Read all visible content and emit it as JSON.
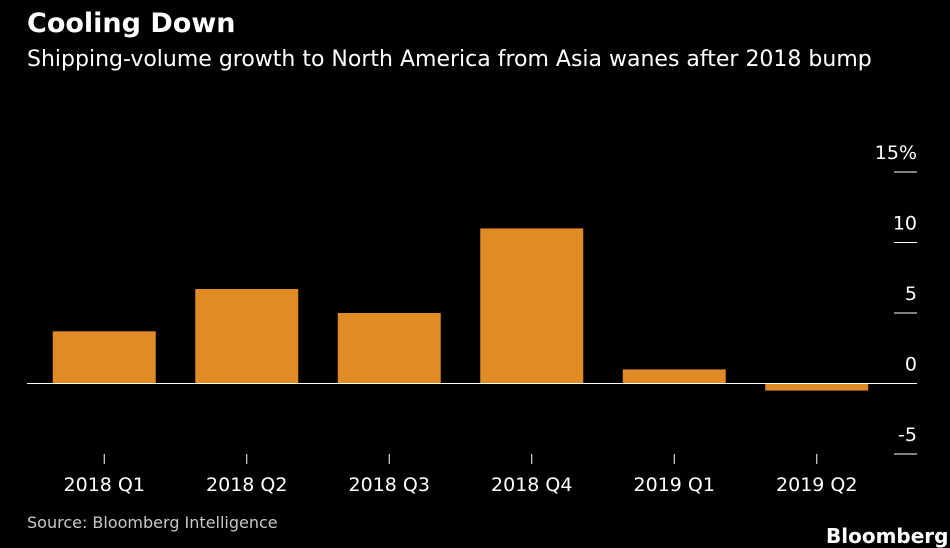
{
  "header": {
    "title": "Cooling Down",
    "subtitle": "Shipping-volume growth to North America from Asia wanes after 2018 bump"
  },
  "footer": {
    "source": "Source: Bloomberg Intelligence",
    "brand": "Bloomberg"
  },
  "colors": {
    "background": "#000000",
    "bar": "#e08b25",
    "axis": "#ffffff",
    "text": "#ffffff"
  },
  "chart_data": {
    "type": "bar",
    "title": "Cooling Down",
    "subtitle": "Shipping-volume growth to North America from Asia wanes after 2018 bump",
    "categories": [
      "2018 Q1",
      "2018 Q2",
      "2018 Q3",
      "2018 Q4",
      "2019 Q1",
      "2019 Q2"
    ],
    "values": [
      3.7,
      6.7,
      5.0,
      11.0,
      1.0,
      -0.5
    ],
    "ylabel": "",
    "xlabel": "",
    "ylim": [
      -5,
      15
    ],
    "yticks": [
      15,
      10,
      5,
      0,
      -5
    ],
    "ytick_labels": [
      "15%",
      "10",
      "5",
      "0",
      "-5"
    ],
    "y_axis_side": "right",
    "grid": false,
    "source": "Source: Bloomberg Intelligence"
  }
}
